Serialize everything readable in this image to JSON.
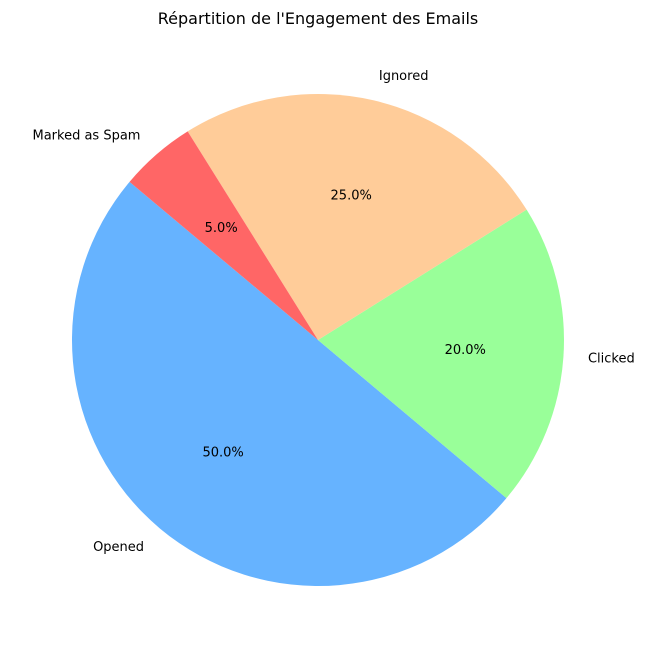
{
  "chart_data": {
    "type": "pie",
    "title": "Répartition de l'Engagement des Emails",
    "labels": [
      "Opened",
      "Clicked",
      "Ignored",
      "Marked as Spam"
    ],
    "values": [
      50,
      20,
      25,
      5
    ],
    "percent_labels": [
      "50.0%",
      "20.0%",
      "25.0%",
      "5.0%"
    ],
    "colors": [
      "#66b3ff",
      "#99ff99",
      "#ffcc99",
      "#ff6666"
    ],
    "start_angle_deg": 140,
    "direction": "counterclockwise"
  }
}
